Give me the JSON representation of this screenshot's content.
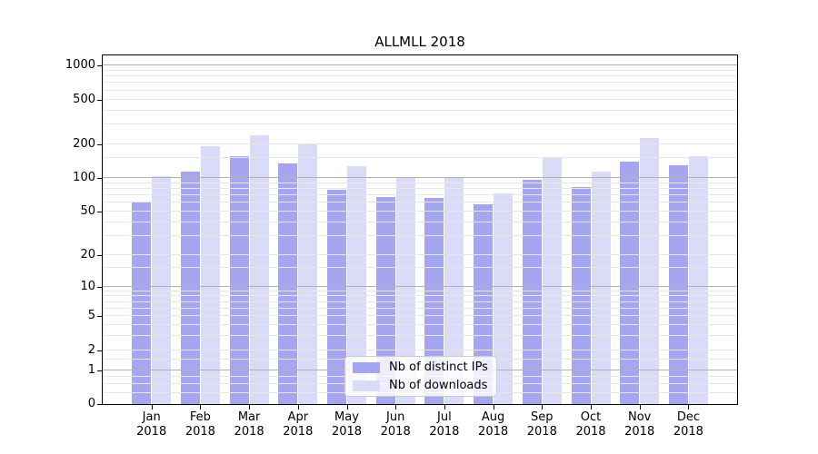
{
  "chart_data": {
    "type": "bar",
    "title": "ALLMLL 2018",
    "categories": [
      "Jan",
      "Feb",
      "Mar",
      "Apr",
      "May",
      "Jun",
      "Jul",
      "Aug",
      "Sep",
      "Oct",
      "Nov",
      "Dec"
    ],
    "category_year": "2018",
    "series": [
      {
        "name": "Nb of distinct IPs",
        "color": "#a5a5f0",
        "values": [
          61,
          115,
          156,
          135,
          78,
          67,
          66,
          58,
          97,
          83,
          139,
          129
        ]
      },
      {
        "name": "Nb of downloads",
        "color": "#dadaf9",
        "values": [
          103,
          193,
          239,
          204,
          128,
          100,
          100,
          73,
          153,
          113,
          226,
          156
        ]
      }
    ],
    "xlabel": "",
    "ylabel": "",
    "yscale": "log1p",
    "ylim": [
      0,
      1232
    ],
    "yticks": [
      0,
      1,
      2,
      5,
      10,
      20,
      50,
      100,
      200,
      500,
      1000
    ],
    "minor_yticks": [
      0.25,
      0.5,
      0.75,
      1.5,
      3,
      4,
      6,
      7,
      8,
      9,
      15,
      30,
      40,
      60,
      70,
      80,
      90,
      150,
      300,
      400,
      600,
      700,
      800,
      900
    ],
    "major_grid_values": [
      1,
      10,
      100,
      1000
    ],
    "grid": true,
    "grid_above_bars": true,
    "legend_position": "lower center",
    "colors": {
      "major_grid": "#b2b2b2",
      "minor_grid": "#e7e7e7",
      "axis_frame": "#000000",
      "background": "#ffffff"
    }
  }
}
